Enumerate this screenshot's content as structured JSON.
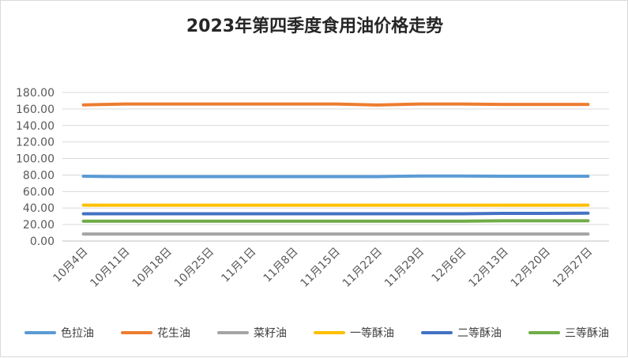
{
  "chart_data": {
    "type": "line",
    "title": "2023年第四季度食用油价格走势",
    "xlabel": "",
    "ylabel": "",
    "ylim": [
      0,
      180
    ],
    "yticks": [
      "0.00",
      "20.00",
      "40.00",
      "60.00",
      "80.00",
      "100.00",
      "120.00",
      "140.00",
      "160.00",
      "180.00"
    ],
    "categories": [
      "10月4日",
      "10月11日",
      "10月18日",
      "10月25日",
      "11月1日",
      "11月8日",
      "11月15日",
      "11月22日",
      "11月29日",
      "12月6日",
      "12月13日",
      "12月20日",
      "12月27日"
    ],
    "grid": true,
    "legend_position": "bottom",
    "series": [
      {
        "name": "色拉油",
        "color": "#5b9bd5",
        "values": [
          78.5,
          78.0,
          78.0,
          78.0,
          78.0,
          78.0,
          78.0,
          78.0,
          78.8,
          78.8,
          78.5,
          78.5,
          78.5
        ]
      },
      {
        "name": "花生油",
        "color": "#ed7d31",
        "values": [
          165.0,
          166.0,
          166.0,
          166.0,
          166.0,
          166.0,
          166.0,
          164.8,
          166.0,
          166.0,
          165.5,
          165.5,
          165.5
        ]
      },
      {
        "name": "菜籽油",
        "color": "#a5a5a5",
        "values": [
          8.5,
          8.5,
          8.5,
          8.5,
          8.5,
          8.5,
          8.5,
          8.5,
          8.5,
          8.5,
          8.5,
          8.5,
          8.5
        ]
      },
      {
        "name": "一等酥油",
        "color": "#ffc000",
        "values": [
          43.5,
          43.5,
          43.5,
          43.5,
          43.5,
          43.5,
          43.5,
          43.5,
          43.5,
          43.5,
          43.5,
          43.5,
          43.5
        ]
      },
      {
        "name": "二等酥油",
        "color": "#4472c4",
        "values": [
          33.0,
          33.0,
          33.0,
          33.0,
          33.0,
          33.0,
          33.0,
          33.0,
          33.0,
          33.0,
          33.5,
          33.5,
          33.8
        ]
      },
      {
        "name": "三等酥油",
        "color": "#70ad47",
        "values": [
          24.0,
          24.0,
          24.0,
          24.0,
          24.0,
          24.0,
          24.0,
          24.0,
          24.0,
          24.0,
          24.5,
          24.5,
          24.5
        ]
      }
    ]
  }
}
